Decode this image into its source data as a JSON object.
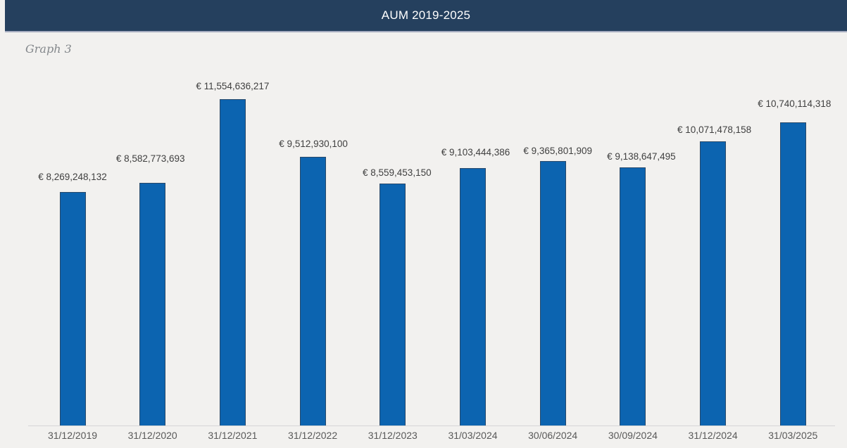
{
  "window": {
    "title": "AUM 2019-2025"
  },
  "caption": "Graph 3",
  "chart_data": {
    "type": "bar",
    "title": "AUM 2019-2025",
    "currency": "EUR",
    "categories": [
      "31/12/2019",
      "31/12/2020",
      "31/12/2021",
      "31/12/2022",
      "31/12/2023",
      "31/03/2024",
      "30/06/2024",
      "30/09/2024",
      "31/12/2024",
      "31/03/2025"
    ],
    "values": [
      8269248132,
      8582773693,
      11554636217,
      9512930100,
      8559453150,
      9103444386,
      9365801909,
      9138647495,
      10071478158,
      10740114318
    ],
    "value_labels": [
      "€ 8,269,248,132",
      "€ 8,582,773,693",
      "€ 11,554,636,217",
      "€ 9,512,930,100",
      "€ 8,559,453,150",
      "€ 9,103,444,386",
      "€ 9,365,801,909",
      "€ 9,138,647,495",
      "€ 10,071,478,158",
      "€ 10,740,114,318"
    ],
    "ylim": [
      0,
      11554636217
    ],
    "grid": false,
    "legend": false,
    "data_labels_position": "outside-end",
    "bar_color": "#0c64b0",
    "axis_line_color": "#d6d6d6",
    "label_color": "#3f3f3f",
    "tick_label_color": "#595959"
  },
  "colors": {
    "header_background": "#25405e",
    "header_text": "#ffffff",
    "page_background": "#f2f1ef",
    "caption_text": "#84888c"
  }
}
